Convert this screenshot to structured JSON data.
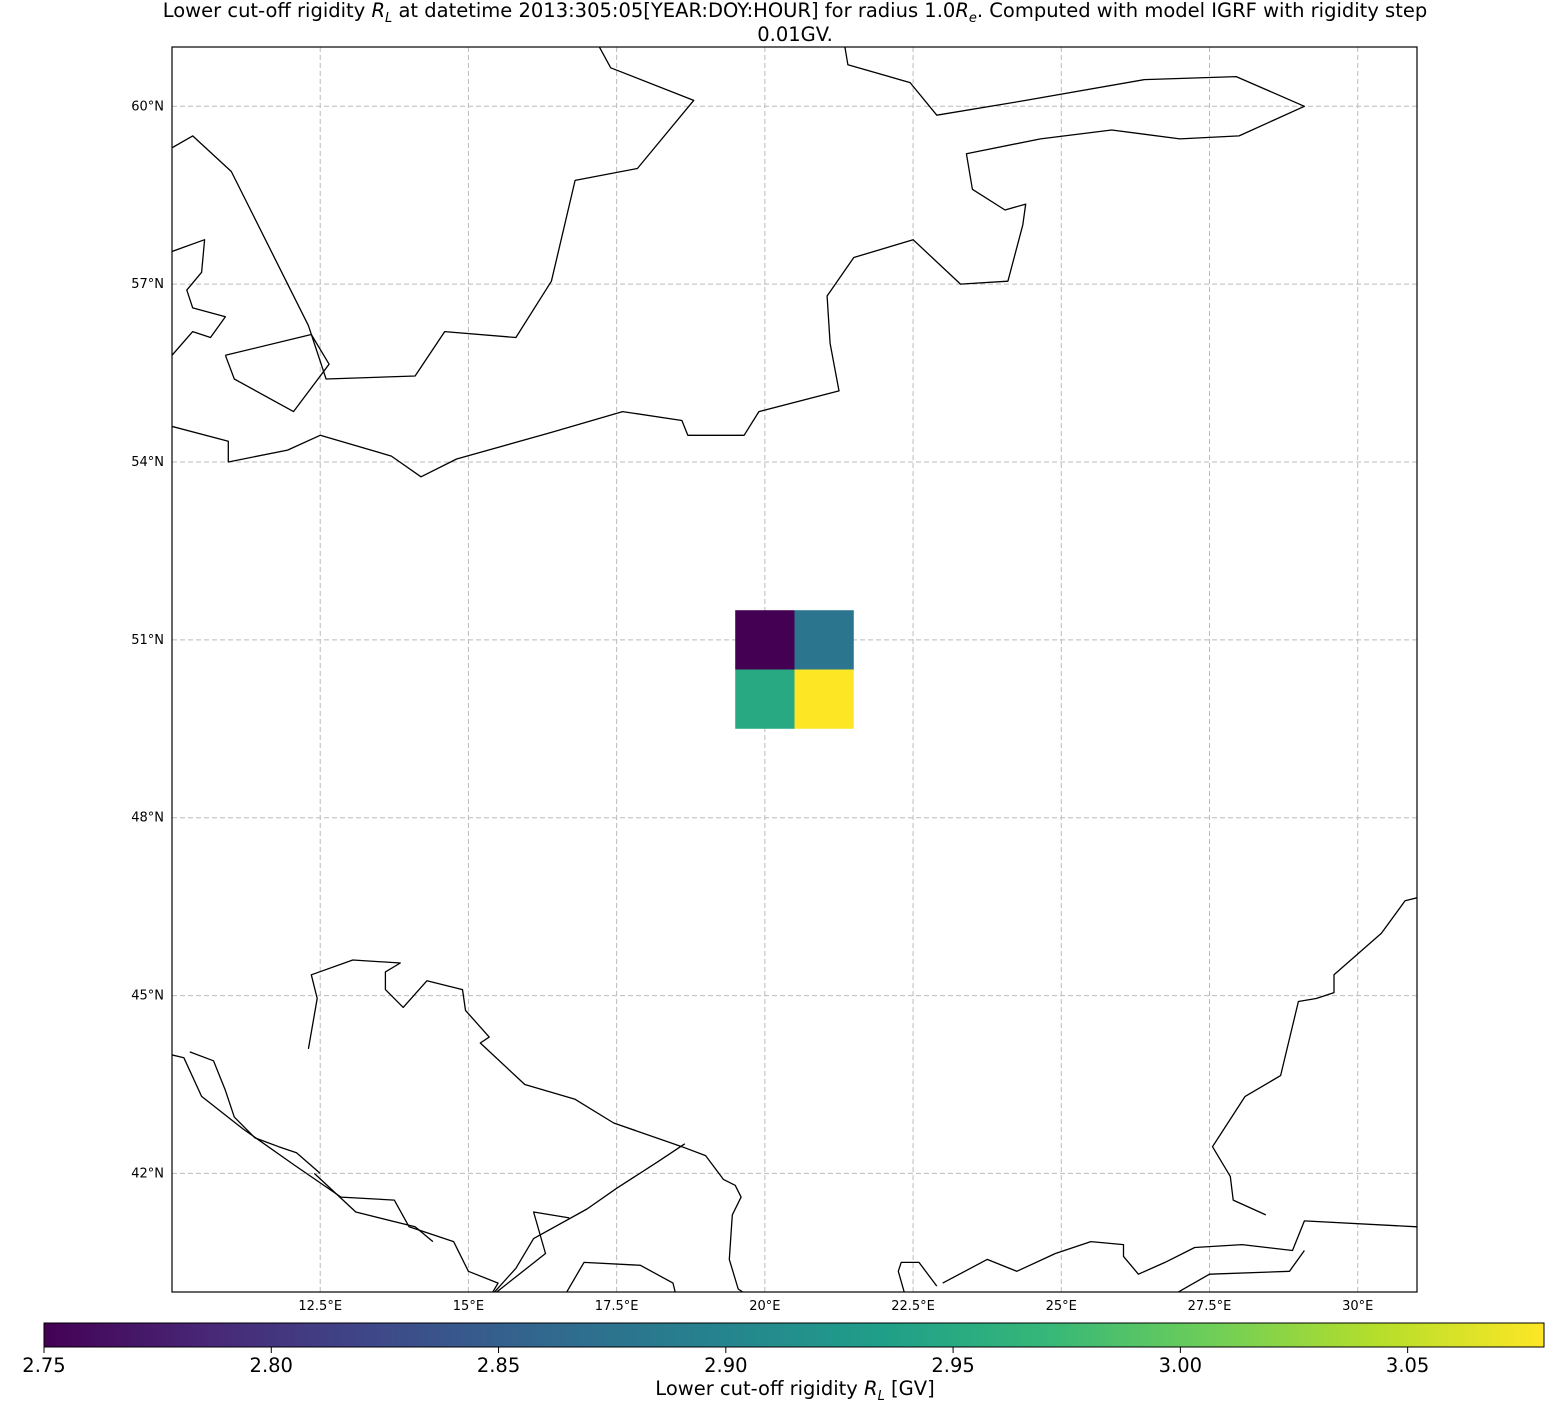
{
  "chart_data": {
    "type": "heatmap",
    "title": {
      "prefix": "Lower cut-off rigidity ",
      "symbol": "R",
      "symbol_sub": "L",
      "middle": " at datetime 2013:305:05[YEAR:DOY:HOUR] for radius 1.0",
      "radius_symbol": "R",
      "radius_sub": "e",
      "suffix": ". Computed with model IGRF with rigidity step",
      "line2": "0.01GV."
    },
    "projection": "PlateCarree",
    "xlim": [
      10,
      31
    ],
    "ylim": [
      40,
      61
    ],
    "grid": true,
    "x_ticks": [
      {
        "value": 12.5,
        "label": "12.5°E"
      },
      {
        "value": 15,
        "label": "15°E"
      },
      {
        "value": 17.5,
        "label": "17.5°E"
      },
      {
        "value": 20,
        "label": "20°E"
      },
      {
        "value": 22.5,
        "label": "22.5°E"
      },
      {
        "value": 25,
        "label": "25°E"
      },
      {
        "value": 27.5,
        "label": "27.5°E"
      },
      {
        "value": 30,
        "label": "30°E"
      }
    ],
    "y_ticks": [
      {
        "value": 42,
        "label": "42°N"
      },
      {
        "value": 45,
        "label": "45°N"
      },
      {
        "value": 48,
        "label": "48°N"
      },
      {
        "value": 51,
        "label": "51°N"
      },
      {
        "value": 54,
        "label": "54°N"
      },
      {
        "value": 57,
        "label": "57°N"
      },
      {
        "value": 60,
        "label": "60°N"
      }
    ],
    "cells": [
      {
        "lon": 20,
        "lat": 51,
        "value": 2.75
      },
      {
        "lon": 21,
        "lat": 51,
        "value": 2.88
      },
      {
        "lon": 20,
        "lat": 50,
        "value": 2.95
      },
      {
        "lon": 21,
        "lat": 50,
        "value": 3.08
      }
    ],
    "cell_size_deg": 1,
    "colormap": "viridis",
    "colormap_stops": [
      "#440154",
      "#482878",
      "#3e4989",
      "#31688e",
      "#26828e",
      "#1f9e89",
      "#35b779",
      "#6ece58",
      "#b5de2b",
      "#fde725"
    ],
    "colorbar": {
      "range": [
        2.75,
        3.08
      ],
      "ticks": [
        {
          "value": 2.75,
          "label": "2.75"
        },
        {
          "value": 2.8,
          "label": "2.80"
        },
        {
          "value": 2.85,
          "label": "2.85"
        },
        {
          "value": 2.9,
          "label": "2.90"
        },
        {
          "value": 2.95,
          "label": "2.95"
        },
        {
          "value": 3.0,
          "label": "3.00"
        },
        {
          "value": 3.05,
          "label": "3.05"
        }
      ],
      "label": {
        "prefix": "Lower cut-off rigidity ",
        "symbol": "R",
        "symbol_sub": "L",
        "suffix": " [GV]"
      },
      "placement": "bottom"
    },
    "coastlines": [
      [
        [
          10,
          59.3
        ],
        [
          10.35,
          59.5
        ],
        [
          11,
          58.9
        ],
        [
          11.75,
          57.4
        ],
        [
          12.3,
          56.3
        ],
        [
          12.6,
          55.4
        ],
        [
          14.1,
          55.45
        ],
        [
          14.6,
          56.2
        ],
        [
          15.8,
          56.1
        ],
        [
          16.4,
          57.05
        ],
        [
          16.8,
          58.75
        ],
        [
          17.85,
          58.95
        ],
        [
          18.8,
          60.1
        ],
        [
          17.4,
          60.65
        ],
        [
          17.1,
          61.2
        ]
      ],
      [
        [
          10,
          57.55
        ],
        [
          10.55,
          57.75
        ],
        [
          10.5,
          57.2
        ],
        [
          10.25,
          56.9
        ],
        [
          10.35,
          56.6
        ],
        [
          10.9,
          56.45
        ],
        [
          10.65,
          56.1
        ],
        [
          10.35,
          56.2
        ],
        [
          10,
          55.8
        ]
      ],
      [
        [
          10.9,
          55.8
        ],
        [
          12.35,
          56.15
        ],
        [
          12.65,
          55.65
        ],
        [
          12.05,
          54.85
        ],
        [
          11.05,
          55.4
        ],
        [
          10.9,
          55.8
        ]
      ],
      [
        [
          10,
          54.6
        ],
        [
          10.95,
          54.35
        ],
        [
          10.95,
          54.0
        ],
        [
          11.95,
          54.2
        ],
        [
          12.5,
          54.45
        ],
        [
          13.7,
          54.1
        ],
        [
          14.2,
          53.75
        ],
        [
          14.8,
          54.05
        ],
        [
          16.4,
          54.5
        ],
        [
          17.6,
          54.85
        ],
        [
          18.6,
          54.7
        ],
        [
          18.7,
          54.45
        ],
        [
          19.65,
          54.45
        ],
        [
          19.9,
          54.85
        ],
        [
          21.25,
          55.2
        ],
        [
          21.1,
          56.0
        ],
        [
          21.05,
          56.8
        ],
        [
          21.5,
          57.45
        ],
        [
          22.5,
          57.75
        ],
        [
          23.3,
          57.0
        ],
        [
          24.1,
          57.05
        ],
        [
          24.35,
          58.0
        ],
        [
          24.4,
          58.35
        ],
        [
          24.05,
          58.25
        ],
        [
          23.5,
          58.6
        ],
        [
          23.4,
          59.2
        ],
        [
          24.65,
          59.45
        ],
        [
          25.85,
          59.6
        ],
        [
          27.0,
          59.45
        ],
        [
          28.0,
          59.5
        ],
        [
          29.1,
          60.0
        ],
        [
          27.95,
          60.5
        ],
        [
          26.4,
          60.45
        ],
        [
          24.4,
          60.1
        ],
        [
          22.9,
          59.85
        ],
        [
          22.45,
          60.4
        ],
        [
          21.4,
          60.7
        ],
        [
          21.35,
          61.0
        ],
        [
          21.3,
          61.2
        ]
      ],
      [
        [
          12.3,
          44.1
        ],
        [
          12.45,
          44.95
        ],
        [
          12.35,
          45.35
        ],
        [
          13.05,
          45.6
        ],
        [
          13.85,
          45.55
        ],
        [
          13.6,
          45.4
        ],
        [
          13.6,
          45.1
        ],
        [
          13.9,
          44.8
        ],
        [
          14.3,
          45.25
        ],
        [
          14.9,
          45.1
        ],
        [
          14.95,
          44.75
        ],
        [
          15.35,
          44.3
        ],
        [
          15.2,
          44.2
        ],
        [
          15.95,
          43.5
        ],
        [
          16.8,
          43.25
        ],
        [
          17.45,
          42.85
        ],
        [
          18.6,
          42.45
        ],
        [
          19.0,
          42.3
        ],
        [
          19.3,
          41.9
        ],
        [
          19.5,
          41.8
        ],
        [
          19.6,
          41.6
        ],
        [
          19.45,
          41.3
        ],
        [
          19.4,
          40.55
        ],
        [
          19.55,
          40.05
        ],
        [
          19.85,
          39.85
        ]
      ],
      [
        [
          10,
          44.0
        ],
        [
          10.2,
          43.95
        ],
        [
          10.5,
          43.3
        ],
        [
          11.2,
          42.75
        ],
        [
          12.05,
          42.15
        ],
        [
          12.85,
          41.6
        ],
        [
          13.75,
          41.55
        ],
        [
          14.0,
          41.1
        ],
        [
          14.75,
          40.85
        ],
        [
          15.0,
          40.35
        ],
        [
          15.5,
          40.15
        ],
        [
          15.35,
          39.9
        ]
      ],
      [
        [
          16.6,
          39.9
        ],
        [
          16.95,
          40.5
        ],
        [
          17.9,
          40.45
        ],
        [
          18.45,
          40.15
        ],
        [
          18.5,
          39.95
        ],
        [
          18.3,
          39.8
        ]
      ],
      [
        [
          12.5,
          42.0
        ],
        [
          12.1,
          42.35
        ],
        [
          11.8,
          42.45
        ],
        [
          11.4,
          42.6
        ],
        [
          11.05,
          42.95
        ],
        [
          10.9,
          43.4
        ],
        [
          10.7,
          43.9
        ],
        [
          10.3,
          44.05
        ]
      ],
      [
        [
          15.35,
          39.9
        ],
        [
          15.8,
          40.4
        ],
        [
          16.1,
          40.9
        ],
        [
          17.0,
          41.4
        ],
        [
          17.5,
          41.75
        ],
        [
          18.2,
          42.2
        ],
        [
          18.65,
          42.5
        ]
      ],
      [
        [
          12.4,
          42.0
        ],
        [
          13.1,
          41.35
        ],
        [
          14.1,
          41.1
        ],
        [
          14.4,
          40.85
        ]
      ],
      [
        [
          15.35,
          39.9
        ],
        [
          16.3,
          40.65
        ],
        [
          16.1,
          41.35
        ],
        [
          16.7,
          41.25
        ]
      ],
      [
        [
          22.35,
          40.0
        ],
        [
          22.25,
          40.35
        ],
        [
          22.3,
          40.5
        ],
        [
          22.6,
          40.5
        ],
        [
          22.9,
          40.1
        ]
      ],
      [
        [
          23.0,
          40.15
        ],
        [
          23.75,
          40.55
        ],
        [
          24.25,
          40.35
        ],
        [
          24.9,
          40.65
        ],
        [
          25.5,
          40.85
        ],
        [
          26.05,
          40.8
        ],
        [
          26.05,
          40.6
        ],
        [
          26.3,
          40.3
        ],
        [
          26.75,
          40.5
        ],
        [
          27.25,
          40.75
        ],
        [
          28.05,
          40.8
        ],
        [
          28.9,
          40.7
        ],
        [
          29.1,
          41.2
        ],
        [
          31,
          41.1
        ]
      ],
      [
        [
          26.8,
          39.9
        ],
        [
          27.5,
          40.3
        ],
        [
          28.85,
          40.35
        ],
        [
          29.1,
          40.7
        ]
      ],
      [
        [
          31,
          46.65
        ],
        [
          30.8,
          46.6
        ],
        [
          30.4,
          46.05
        ],
        [
          29.6,
          45.35
        ],
        [
          29.6,
          45.05
        ],
        [
          29.3,
          44.95
        ],
        [
          29.0,
          44.9
        ],
        [
          28.7,
          43.65
        ],
        [
          28.1,
          43.3
        ],
        [
          27.55,
          42.45
        ],
        [
          27.85,
          41.95
        ],
        [
          27.9,
          41.55
        ],
        [
          28.45,
          41.3
        ]
      ]
    ]
  }
}
